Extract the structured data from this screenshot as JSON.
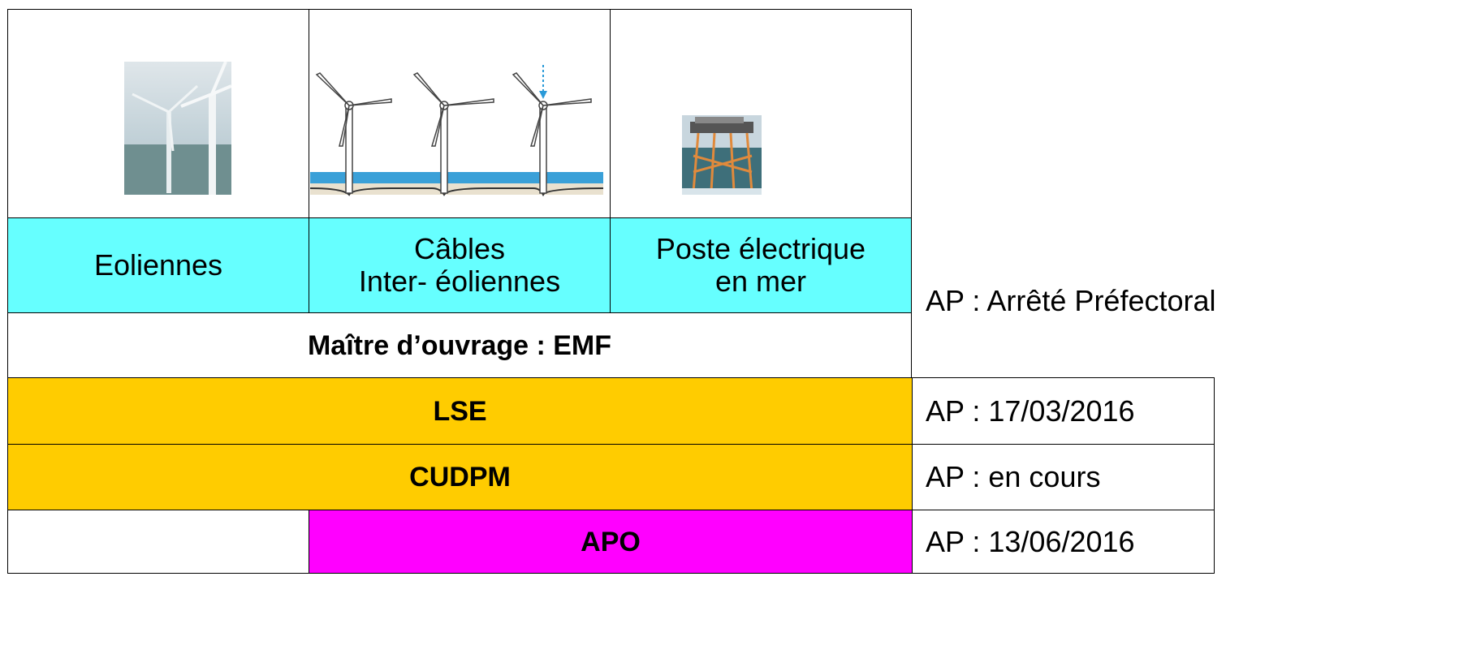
{
  "table": {
    "columns": [
      "Eoliennes",
      "Câbles\nInter- éoliennes",
      "Poste électrique\nen mer"
    ],
    "owner": "Maître d’ouvrage : EMF",
    "note": "AP : Arrêté Préfectoral",
    "rows": [
      [
        "LSE",
        "AP : 17/03/2016"
      ],
      [
        "CUDPM",
        "AP : en cours"
      ],
      [
        "APO",
        "AP : 13/06/2016"
      ]
    ]
  }
}
